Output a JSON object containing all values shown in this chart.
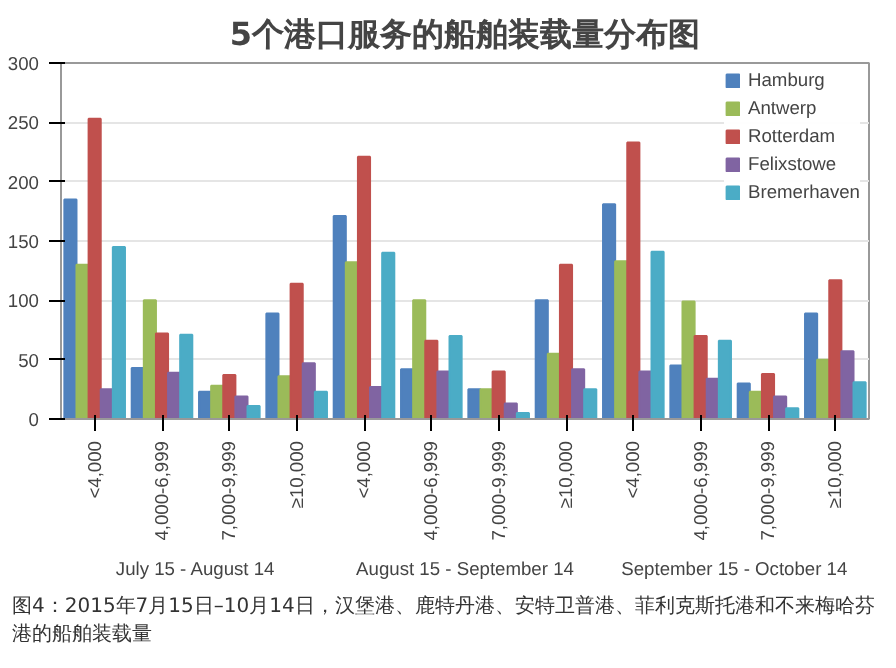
{
  "chart_data": {
    "type": "bar",
    "title": "5个港口服务的船舶装载量分布图",
    "categories": [
      "<4,000",
      "4,000-6,999",
      "7,000-9,999",
      "≥10,000",
      "<4,000",
      "4,000-6,999",
      "7,000-9,999",
      "≥10,000",
      "<4,000",
      "4,000-6,999",
      "7,000-9,999",
      "≥10,000"
    ],
    "series": [
      {
        "name": "Hamburg",
        "color": "#4f81bd",
        "values": [
          185,
          43,
          23,
          89,
          171,
          42,
          25,
          100,
          181,
          45,
          30,
          89
        ]
      },
      {
        "name": "Antwerp",
        "color": "#9bbb59",
        "values": [
          130,
          100,
          28,
          36,
          132,
          100,
          25,
          55,
          133,
          99,
          23,
          50
        ]
      },
      {
        "name": "Rotterdam",
        "color": "#c0504d",
        "values": [
          253,
          72,
          37,
          114,
          221,
          66,
          40,
          130,
          233,
          70,
          38,
          117
        ]
      },
      {
        "name": "Felixstowe",
        "color": "#8064a2",
        "values": [
          25,
          39,
          19,
          47,
          27,
          40,
          13,
          42,
          40,
          34,
          19,
          57
        ]
      },
      {
        "name": "Bremerhaven",
        "color": "#4bacc6",
        "values": [
          145,
          71,
          11,
          23,
          140,
          70,
          5,
          25,
          141,
          66,
          9,
          31
        ]
      }
    ],
    "ylim": [
      0,
      300
    ],
    "yticks": [
      0,
      50,
      100,
      150,
      200,
      250,
      300
    ],
    "grid": "y",
    "legend": "top right",
    "annotations": [
      "July 15 - August 14",
      "August 15 - September 14",
      "September 15 - October 14",
      "图4：2015年7月15日–10月14日，汉堡港、鹿特丹港、安特卫普港、菲利克斯托港和不来梅哈芬港的船舶装载量"
    ]
  }
}
